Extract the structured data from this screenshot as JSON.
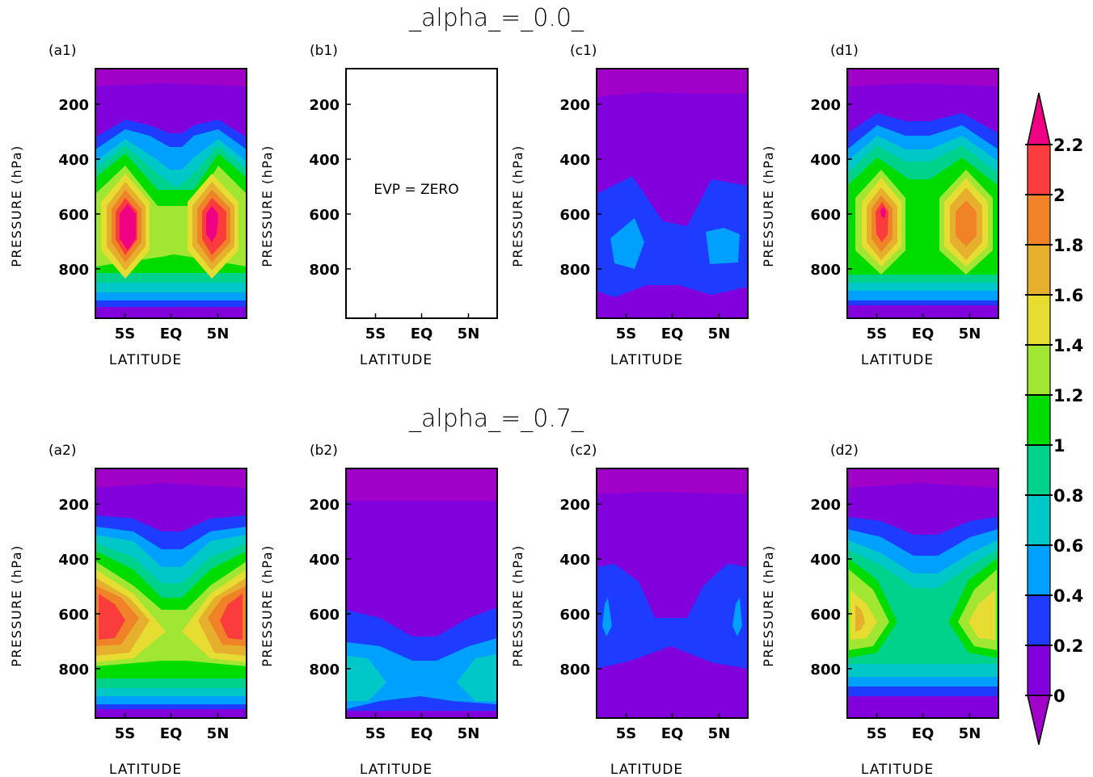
{
  "figure": {
    "row_titles": [
      "_alpha_=_0.0_",
      "_alpha_=_0.7_"
    ]
  },
  "chart_data": {
    "type": "contour",
    "xlabel": "LATITUDE",
    "ylabel": "PRESSURE (hPa)",
    "x_tick_labels": [
      "5S",
      "EQ",
      "5N"
    ],
    "y_tick_labels": [
      "200",
      "400",
      "600",
      "800"
    ],
    "y_ticks_values": [
      200,
      400,
      600,
      800
    ],
    "ylim": [
      980,
      70
    ],
    "y_inverted": true,
    "colorbar": {
      "levels": [
        0,
        0.2,
        0.4,
        0.6,
        0.8,
        1,
        1.2,
        1.4,
        1.6,
        1.8,
        2,
        2.2
      ],
      "tick_labels": [
        "0",
        "0.2",
        "0.4",
        "0.6",
        "0.8",
        "1",
        "1.2",
        "1.4",
        "1.6",
        "1.8",
        "2",
        "2.2"
      ],
      "colors": [
        "#a000c8",
        "#8200dc",
        "#1e3cff",
        "#00a0ff",
        "#00c8c8",
        "#00d28c",
        "#00dc00",
        "#a0e632",
        "#e6dc32",
        "#e6af2d",
        "#f08228",
        "#fa3c3c",
        "#f00082"
      ],
      "extend": "both"
    },
    "panels": [
      {
        "label": "(a1)",
        "note": "",
        "bands": [
          {
            "level_above": 2,
            "y_range": [
              540,
              760
            ],
            "lat_centers": [
              "5S",
              "5N"
            ]
          },
          {
            "level_above": 1.4,
            "y_range": [
              420,
              850
            ],
            "lat_centers": [
              "5S",
              "5N"
            ]
          },
          {
            "level_above": 1.2,
            "y_range": [
              400,
              880
            ],
            "lat_centers": [
              "5S",
              "EQ",
              "5N"
            ]
          },
          {
            "level_above": 0.4,
            "y_range": [
              290,
              935
            ],
            "lat_centers": [
              "5S",
              "EQ",
              "5N"
            ]
          },
          {
            "level_above": 0.2,
            "y_range": [
              145,
              955
            ],
            "lat_centers": [
              "5S",
              "EQ",
              "5N"
            ]
          }
        ]
      },
      {
        "label": "(b1)",
        "note": "EVP = ZERO",
        "bands": []
      },
      {
        "label": "(c1)",
        "note": "",
        "bands": [
          {
            "level_above": 0.4,
            "y_range": [
              680,
              790
            ],
            "lat_centers": [
              "5S",
              "5N"
            ]
          },
          {
            "level_above": 0.2,
            "y_range": [
              500,
              880
            ],
            "lat_centers": [
              "5S",
              "EQ",
              "5N"
            ]
          },
          {
            "level_above": 0,
            "y_range": [
              165,
              980
            ],
            "lat_centers": [
              "5S",
              "EQ",
              "5N"
            ]
          }
        ]
      },
      {
        "label": "(d1)",
        "note": "",
        "bands": [
          {
            "level_above": 2,
            "y_range": [
              580,
              680
            ],
            "lat_centers": [
              "5S"
            ]
          },
          {
            "level_above": 1.8,
            "y_range": [
              560,
              720
            ],
            "lat_centers": [
              "5S",
              "5N"
            ]
          },
          {
            "level_above": 1.2,
            "y_range": [
              430,
              860
            ],
            "lat_centers": [
              "5S",
              "EQ",
              "5N"
            ]
          },
          {
            "level_above": 0.4,
            "y_range": [
              270,
              925
            ],
            "lat_centers": [
              "5S",
              "EQ",
              "5N"
            ]
          },
          {
            "level_above": 0.2,
            "y_range": [
              140,
              950
            ],
            "lat_centers": [
              "5S",
              "EQ",
              "5N"
            ]
          }
        ]
      },
      {
        "label": "(a2)",
        "note": "",
        "bands": [
          {
            "level_above": 2,
            "y_range": [
              580,
              740
            ],
            "lat_centers": [
              "5S",
              "5N"
            ]
          },
          {
            "level_above": 1.4,
            "y_range": [
              450,
              820
            ],
            "lat_centers": [
              "5S",
              "EQ",
              "5N"
            ]
          },
          {
            "level_above": 1.2,
            "y_range": [
              400,
              860
            ],
            "lat_centers": [
              "5S",
              "EQ",
              "5N"
            ]
          },
          {
            "level_above": 0.4,
            "y_range": [
              260,
              930
            ],
            "lat_centers": [
              "5S",
              "EQ",
              "5N"
            ]
          },
          {
            "level_above": 0.2,
            "y_range": [
              140,
              955
            ],
            "lat_centers": [
              "5S",
              "EQ",
              "5N"
            ]
          }
        ]
      },
      {
        "label": "(b2)",
        "note": "",
        "bands": [
          {
            "level_above": 0.6,
            "y_range": [
              790,
              900
            ],
            "lat_centers": [
              "5S",
              "5N"
            ]
          },
          {
            "level_above": 0.4,
            "y_range": [
              730,
              950
            ],
            "lat_centers": [
              "5S",
              "EQ",
              "5N"
            ]
          },
          {
            "level_above": 0.2,
            "y_range": [
              600,
              970
            ],
            "lat_centers": [
              "5S",
              "EQ",
              "5N"
            ]
          },
          {
            "level_above": 0,
            "y_range": [
              190,
              980
            ],
            "lat_centers": [
              "5S",
              "EQ",
              "5N"
            ]
          }
        ]
      },
      {
        "label": "(c2)",
        "note": "",
        "bands": [
          {
            "level_above": 0.4,
            "y_range": [
              580,
              700
            ],
            "lat_centers": [
              "5S",
              "5N"
            ]
          },
          {
            "level_above": 0.2,
            "y_range": [
              420,
              800
            ],
            "lat_centers": [
              "5S",
              "EQ",
              "5N"
            ]
          },
          {
            "level_above": 0,
            "y_range": [
              165,
              980
            ],
            "lat_centers": [
              "5S",
              "EQ",
              "5N"
            ]
          }
        ]
      },
      {
        "label": "(d2)",
        "note": "",
        "bands": [
          {
            "level_above": 1.4,
            "y_range": [
              560,
              660
            ],
            "lat_centers": [
              "5S",
              "5N"
            ]
          },
          {
            "level_above": 1.2,
            "y_range": [
              500,
              740
            ],
            "lat_centers": [
              "5S",
              "5N"
            ]
          },
          {
            "level_above": 0.8,
            "y_range": [
              470,
              800
            ],
            "lat_centers": [
              "5S",
              "EQ",
              "5N"
            ]
          },
          {
            "level_above": 0.4,
            "y_range": [
              280,
              885
            ],
            "lat_centers": [
              "5S",
              "EQ",
              "5N"
            ]
          },
          {
            "level_above": 0.2,
            "y_range": [
              160,
              945
            ],
            "lat_centers": [
              "5S",
              "EQ",
              "5N"
            ]
          }
        ]
      }
    ]
  }
}
